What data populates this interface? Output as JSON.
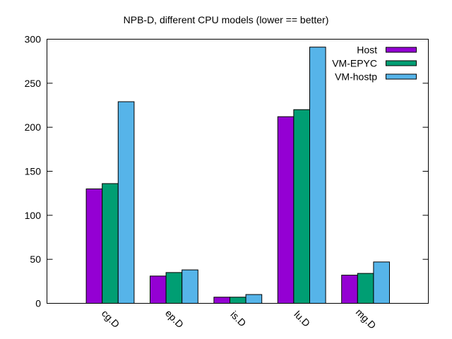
{
  "title": "NPB-D, different CPU models (lower == better)",
  "chart_data": {
    "type": "bar",
    "title": "NPB-D, different CPU models (lower == better)",
    "xlabel": "",
    "ylabel": "",
    "categories": [
      "cg.D",
      "ep.D",
      "is.D",
      "lu.D",
      "mg.D"
    ],
    "series": [
      {
        "name": "Host",
        "color": "#9400d3",
        "values": [
          130,
          31,
          7,
          212,
          32
        ]
      },
      {
        "name": "VM-EPYC",
        "color": "#009e73",
        "values": [
          136,
          35,
          7,
          220,
          34
        ]
      },
      {
        "name": "VM-hostp",
        "color": "#56b4e9",
        "values": [
          229,
          38,
          10,
          291,
          47
        ]
      }
    ],
    "ylim": [
      0,
      300
    ],
    "yticks": [
      0,
      50,
      100,
      150,
      200,
      250,
      300
    ],
    "grid": false,
    "legend_position": "top-right-inside",
    "bar_border_color": "#000000",
    "axis_color": "#000000",
    "text_color": "#000000",
    "background": "#ffffff"
  }
}
